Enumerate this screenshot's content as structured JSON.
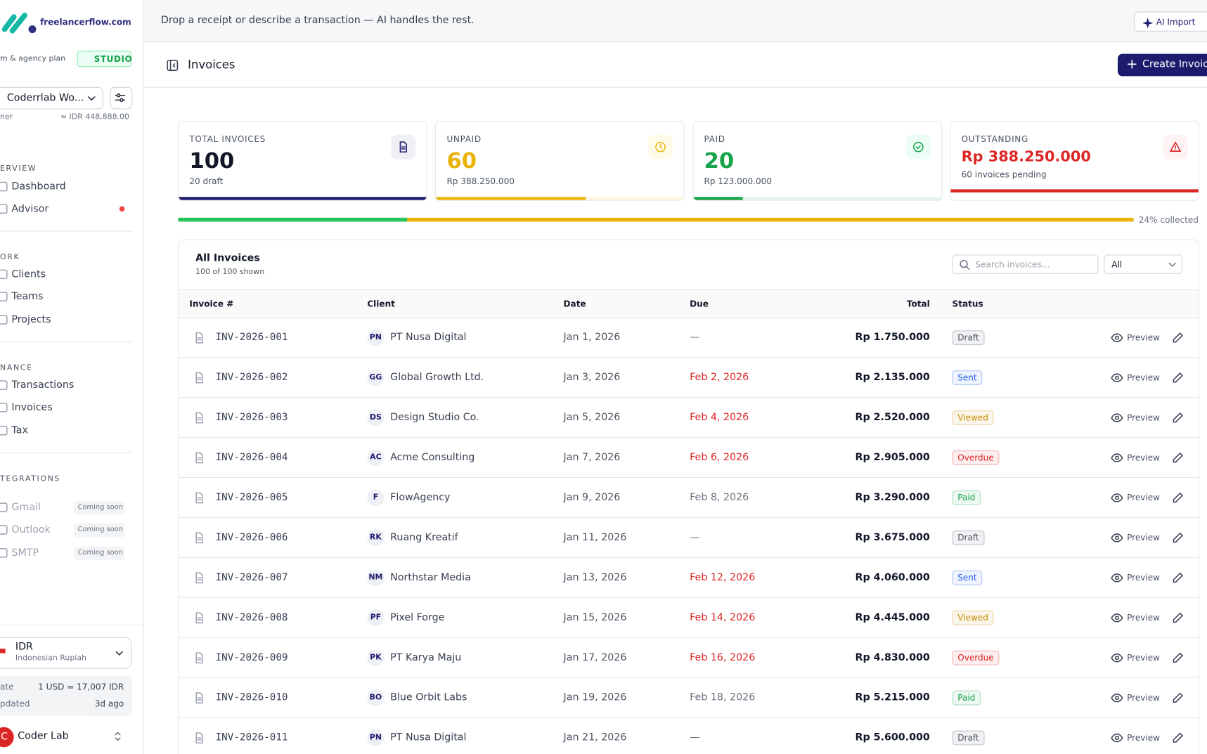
{
  "header": {
    "logo": "freelancerflow.com",
    "prompt": "Drop a receipt or describe a transaction — AI handles the rest.",
    "ai_button": "AI Import"
  },
  "sidebar": {
    "plan": "m & agency plan",
    "badge": "STUDIO",
    "workspace": "Coderrlab Wo...",
    "role": "ner",
    "balance": "≈ IDR 448,888.00",
    "sections": [
      {
        "title": "ERVIEW",
        "items": [
          {
            "label": "Dashboard"
          },
          {
            "label": "Advisor"
          }
        ]
      },
      {
        "title": "ORK",
        "items": [
          {
            "label": "Clients"
          },
          {
            "label": "Teams"
          },
          {
            "label": "Projects"
          }
        ]
      },
      {
        "title": "NANCE",
        "items": [
          {
            "label": "Transactions"
          },
          {
            "label": "Invoices"
          },
          {
            "label": "Tax"
          }
        ]
      },
      {
        "title": "TEGRATIONS",
        "items": [
          {
            "label": "Gmail",
            "note": "Coming soon"
          },
          {
            "label": "Outlook",
            "note": "Coming soon"
          },
          {
            "label": "SMTP",
            "note": "Coming soon"
          }
        ]
      }
    ],
    "currency": {
      "code": "IDR",
      "name": "Indonesian Rupiah"
    },
    "rate": [
      {
        "label": "ate",
        "value": "1 USD = 17,007 IDR"
      },
      {
        "label": "pdated",
        "value": "3d ago"
      }
    ],
    "user": {
      "initial": "C",
      "name": "Coder Lab"
    }
  },
  "page": {
    "title": "Invoices",
    "create_button": "Create Invoice"
  },
  "stats": [
    {
      "label": "TOTAL INVOICES",
      "value": 100,
      "sub": "20 draft",
      "color": "#1e1b6e"
    },
    {
      "label": "UNPAID",
      "value": 60,
      "sub": "Rp 388.250.000",
      "color": "#eab308"
    },
    {
      "label": "PAID",
      "value": 20,
      "sub": "Rp 123.000.000",
      "color": "#16a34a"
    },
    {
      "label": "OUTSTANDING",
      "value": "Rp 388.250.000",
      "sub": "60 invoices pending",
      "color": "#dc2626"
    }
  ],
  "collected": {
    "value": 24,
    "label": "24% collected"
  },
  "table": {
    "title": "All Invoices",
    "subtitle": "100 of 100 shown",
    "search_placeholder": "Search invoices...",
    "filter": "All",
    "columns": [
      "Invoice #",
      "Client",
      "Date",
      "Due",
      "Total",
      "Status"
    ],
    "action": "Preview",
    "status_colors": {
      "Draft": "#4b5563",
      "Sent": "#2563eb",
      "Viewed": "#ca8a04",
      "Overdue": "#dc2626",
      "Paid": "#16a34a"
    },
    "rows": [
      {
        "id": "INV-2026-001",
        "initials": "PN",
        "client": "PT Nusa Digital",
        "date": "Jan 1, 2026",
        "due": "—",
        "due_color": "#6b7280",
        "total": "Rp 1.750.000",
        "status": "Draft"
      },
      {
        "id": "INV-2026-002",
        "initials": "GG",
        "client": "Global Growth Ltd.",
        "date": "Jan 3, 2026",
        "due": "Feb 2, 2026",
        "due_color": "#dc2626",
        "total": "Rp 2.135.000",
        "status": "Sent"
      },
      {
        "id": "INV-2026-003",
        "initials": "DS",
        "client": "Design Studio Co.",
        "date": "Jan 5, 2026",
        "due": "Feb 4, 2026",
        "due_color": "#dc2626",
        "total": "Rp 2.520.000",
        "status": "Viewed"
      },
      {
        "id": "INV-2026-004",
        "initials": "AC",
        "client": "Acme Consulting",
        "date": "Jan 7, 2026",
        "due": "Feb 6, 2026",
        "due_color": "#dc2626",
        "total": "Rp 2.905.000",
        "status": "Overdue"
      },
      {
        "id": "INV-2026-005",
        "initials": "F",
        "client": "FlowAgency",
        "date": "Jan 9, 2026",
        "due": "Feb 8, 2026",
        "due_color": "#6b7280",
        "total": "Rp 3.290.000",
        "status": "Paid"
      },
      {
        "id": "INV-2026-006",
        "initials": "RK",
        "client": "Ruang Kreatif",
        "date": "Jan 11, 2026",
        "due": "—",
        "due_color": "#6b7280",
        "total": "Rp 3.675.000",
        "status": "Draft"
      },
      {
        "id": "INV-2026-007",
        "initials": "NM",
        "client": "Northstar Media",
        "date": "Jan 13, 2026",
        "due": "Feb 12, 2026",
        "due_color": "#dc2626",
        "total": "Rp 4.060.000",
        "status": "Sent"
      },
      {
        "id": "INV-2026-008",
        "initials": "PF",
        "client": "Pixel Forge",
        "date": "Jan 15, 2026",
        "due": "Feb 14, 2026",
        "due_color": "#dc2626",
        "total": "Rp 4.445.000",
        "status": "Viewed"
      },
      {
        "id": "INV-2026-009",
        "initials": "PK",
        "client": "PT Karya Maju",
        "date": "Jan 17, 2026",
        "due": "Feb 16, 2026",
        "due_color": "#dc2626",
        "total": "Rp 4.830.000",
        "status": "Overdue"
      },
      {
        "id": "INV-2026-010",
        "initials": "BO",
        "client": "Blue Orbit Labs",
        "date": "Jan 19, 2026",
        "due": "Feb 18, 2026",
        "due_color": "#6b7280",
        "total": "Rp 5.215.000",
        "status": "Paid"
      },
      {
        "id": "INV-2026-011",
        "initials": "PN",
        "client": "PT Nusa Digital",
        "date": "Jan 21, 2026",
        "due": "—",
        "due_color": "#6b7280",
        "total": "Rp 5.600.000",
        "status": "Draft"
      }
    ]
  }
}
